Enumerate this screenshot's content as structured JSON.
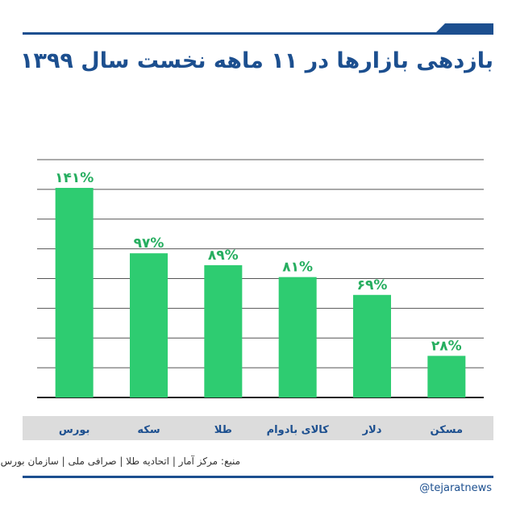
{
  "header": {
    "title": "بازدهی بازارها در ۱۱ ماهه نخست سال ۱۳۹۹"
  },
  "chart_data": {
    "type": "bar",
    "title": "بازدهی بازارها در ۱۱ ماهه نخست سال ۱۳۹۹",
    "categories": [
      "بورس",
      "سکه",
      "طلا",
      "کالای بادوام",
      "دلار",
      "مسکن"
    ],
    "values": [
      141,
      97,
      89,
      81,
      69,
      28
    ],
    "data_labels": [
      "۱۴۱%",
      "۹۷%",
      "۸۹%",
      "۸۱%",
      "۶۹%",
      "۲۸%"
    ],
    "unit": "%",
    "ylim": [
      0,
      160
    ],
    "xlabel": "",
    "ylabel": "",
    "grid": true
  },
  "footer": {
    "source": "منبع: مرکز آمار | اتحادیه طلا | صرافی ملی | سازمان بورس",
    "brand": "@tejaratnews"
  },
  "colors": {
    "bar": "#2ecc71",
    "value_label": "#27ae60",
    "category_label": "#1c4f8f",
    "rule": "#1c4f8f"
  }
}
